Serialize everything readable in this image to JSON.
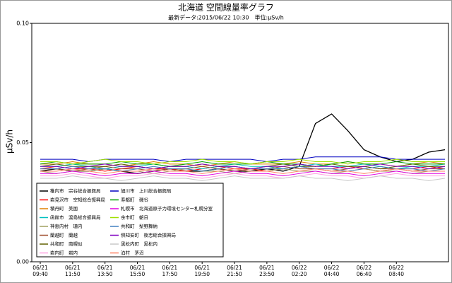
{
  "chart_data": {
    "type": "line",
    "title": "北海道 空間線量率グラフ",
    "subtitle": "最新データ:2015/06/22 10:30　単位:μSv/h",
    "y_label": "μSv/h",
    "categories": [
      "06/21 09:40",
      null,
      "06/21 11:50",
      null,
      "06/21 13:50",
      null,
      "06/21 15:50",
      null,
      "06/21 17:50",
      null,
      "06/21 19:50",
      null,
      "06/21 21:50",
      null,
      "06/21 23:50",
      null,
      "06/22 02:20",
      null,
      "06/22 04:40",
      null,
      "06/22 06:40",
      null,
      "06/22 08:40",
      null,
      null,
      null
    ],
    "ylim": [
      0,
      0.1
    ],
    "yticks": [
      {
        "value": 0,
        "label": "0.00"
      },
      {
        "value": 0.05,
        "label": "0.05"
      },
      {
        "value": 0.1,
        "label": "0.10"
      }
    ],
    "series": [
      {
        "name": "稚内市　宗谷総合振興局",
        "color": "#000000",
        "values": [
          0.038,
          0.039,
          0.038,
          0.038,
          0.039,
          0.038,
          0.037,
          0.038,
          0.039,
          0.038,
          0.038,
          0.039,
          0.038,
          0.038,
          0.039,
          0.038,
          0.04,
          0.058,
          0.062,
          0.055,
          0.047,
          0.044,
          0.042,
          0.043,
          0.046,
          0.047
        ]
      },
      {
        "name": "岩見沢市　空知総合振興局",
        "color": "#ff0000",
        "values": [
          0.039,
          0.04,
          0.039,
          0.039,
          0.038,
          0.039,
          0.04,
          0.039,
          0.039,
          0.038,
          0.039,
          0.04,
          0.039,
          0.039,
          0.038,
          0.039,
          0.04,
          0.039,
          0.039,
          0.04,
          0.039,
          0.038,
          0.039,
          0.039,
          0.04,
          0.039
        ]
      },
      {
        "name": "積丹町　美国",
        "color": "#e08000",
        "values": [
          0.041,
          0.041,
          0.042,
          0.041,
          0.041,
          0.04,
          0.041,
          0.042,
          0.041,
          0.041,
          0.04,
          0.041,
          0.042,
          0.041,
          0.041,
          0.041,
          0.042,
          0.041,
          0.041,
          0.042,
          0.041,
          0.041,
          0.04,
          0.041,
          0.042,
          0.041
        ]
      },
      {
        "name": "函館市　渡島総合振興局",
        "color": "#00c0c0",
        "values": [
          0.04,
          0.04,
          0.041,
          0.04,
          0.039,
          0.04,
          0.04,
          0.041,
          0.04,
          0.04,
          0.039,
          0.04,
          0.041,
          0.04,
          0.04,
          0.039,
          0.04,
          0.041,
          0.04,
          0.04,
          0.041,
          0.04,
          0.039,
          0.04,
          0.04,
          0.041
        ]
      },
      {
        "name": "神恵内村　珊内",
        "color": "#a0a060",
        "values": [
          0.038,
          0.037,
          0.038,
          0.038,
          0.039,
          0.038,
          0.038,
          0.037,
          0.038,
          0.039,
          0.038,
          0.038,
          0.037,
          0.038,
          0.038,
          0.039,
          0.038,
          0.038,
          0.037,
          0.038,
          0.039,
          0.038,
          0.038,
          0.037,
          0.038,
          0.038
        ]
      },
      {
        "name": "蘭越町　蘭越",
        "color": "#a05030",
        "values": [
          0.039,
          0.039,
          0.038,
          0.039,
          0.04,
          0.039,
          0.039,
          0.038,
          0.039,
          0.039,
          0.04,
          0.039,
          0.038,
          0.039,
          0.039,
          0.04,
          0.039,
          0.039,
          0.038,
          0.039,
          0.04,
          0.039,
          0.039,
          0.038,
          0.039,
          0.039
        ]
      },
      {
        "name": "共和町　南幌似",
        "color": "#606000",
        "values": [
          0.04,
          0.041,
          0.04,
          0.04,
          0.04,
          0.041,
          0.04,
          0.039,
          0.04,
          0.04,
          0.041,
          0.04,
          0.04,
          0.039,
          0.04,
          0.041,
          0.04,
          0.04,
          0.041,
          0.04,
          0.04,
          0.039,
          0.04,
          0.041,
          0.04,
          0.04
        ]
      },
      {
        "name": "岩内町　岩内",
        "color": "#ffa0e0",
        "values": [
          0.036,
          0.036,
          0.037,
          0.036,
          0.035,
          0.036,
          0.036,
          0.037,
          0.036,
          0.036,
          0.035,
          0.036,
          0.037,
          0.036,
          0.036,
          0.035,
          0.036,
          0.037,
          0.036,
          0.036,
          0.035,
          0.036,
          0.037,
          0.036,
          0.036,
          0.036
        ]
      },
      {
        "name": "旭川市　上川総合振興局",
        "color": "#0000c0",
        "values": [
          0.043,
          0.043,
          0.043,
          0.042,
          0.043,
          0.043,
          0.043,
          0.043,
          0.042,
          0.043,
          0.043,
          0.043,
          0.043,
          0.043,
          0.042,
          0.043,
          0.043,
          0.044,
          0.044,
          0.044,
          0.044,
          0.044,
          0.043,
          0.043,
          0.043,
          0.043
        ]
      },
      {
        "name": "寿都町　磯谷",
        "color": "#00a000",
        "values": [
          0.041,
          0.042,
          0.041,
          0.041,
          0.041,
          0.042,
          0.041,
          0.041,
          0.04,
          0.041,
          0.042,
          0.041,
          0.041,
          0.041,
          0.042,
          0.041,
          0.041,
          0.04,
          0.041,
          0.042,
          0.041,
          0.041,
          0.042,
          0.041,
          0.041,
          0.041
        ]
      },
      {
        "name": "札幌市　北海道原子力環境センター札幌分室",
        "color": "#e000e0",
        "values": [
          0.037,
          0.037,
          0.038,
          0.037,
          0.036,
          0.037,
          0.037,
          0.038,
          0.037,
          0.037,
          0.036,
          0.037,
          0.038,
          0.037,
          0.037,
          0.036,
          0.037,
          0.038,
          0.037,
          0.037,
          0.036,
          0.037,
          0.038,
          0.037,
          0.037,
          0.037
        ]
      },
      {
        "name": "余市町　朝日",
        "color": "#a0e000",
        "values": [
          0.042,
          0.042,
          0.041,
          0.042,
          0.043,
          0.042,
          0.042,
          0.041,
          0.042,
          0.042,
          0.043,
          0.042,
          0.042,
          0.041,
          0.042,
          0.042,
          0.043,
          0.042,
          0.042,
          0.041,
          0.042,
          0.042,
          0.043,
          0.042,
          0.042,
          0.042
        ]
      },
      {
        "name": "共和町　梨野舞納",
        "color": "#4080c0",
        "values": [
          0.039,
          0.039,
          0.04,
          0.039,
          0.039,
          0.038,
          0.039,
          0.04,
          0.039,
          0.039,
          0.038,
          0.039,
          0.04,
          0.039,
          0.039,
          0.039,
          0.04,
          0.039,
          0.039,
          0.038,
          0.039,
          0.04,
          0.039,
          0.039,
          0.038,
          0.039
        ]
      },
      {
        "name": "倶知安町　後志総合振興局",
        "color": "#8000c0",
        "values": [
          0.04,
          0.04,
          0.039,
          0.04,
          0.041,
          0.04,
          0.04,
          0.039,
          0.04,
          0.04,
          0.041,
          0.04,
          0.04,
          0.039,
          0.04,
          0.04,
          0.041,
          0.04,
          0.04,
          0.039,
          0.04,
          0.041,
          0.04,
          0.04,
          0.039,
          0.04
        ]
      },
      {
        "name": "黒松内町　黒松内",
        "color": "#c8c8c8",
        "values": [
          0.035,
          0.035,
          0.036,
          0.035,
          0.035,
          0.034,
          0.035,
          0.036,
          0.035,
          0.035,
          0.034,
          0.035,
          0.036,
          0.035,
          0.035,
          0.035,
          0.036,
          0.035,
          0.035,
          0.034,
          0.035,
          0.036,
          0.035,
          0.035,
          0.034,
          0.035
        ]
      },
      {
        "name": "泊村　茅沼",
        "color": "#ff8060",
        "values": [
          0.038,
          0.038,
          0.039,
          0.038,
          0.037,
          0.038,
          0.038,
          0.039,
          0.038,
          0.038,
          0.037,
          0.038,
          0.039,
          0.038,
          0.038,
          0.037,
          0.038,
          0.039,
          0.038,
          0.038,
          0.037,
          0.038,
          0.039,
          0.038,
          0.038,
          0.038
        ]
      }
    ]
  }
}
